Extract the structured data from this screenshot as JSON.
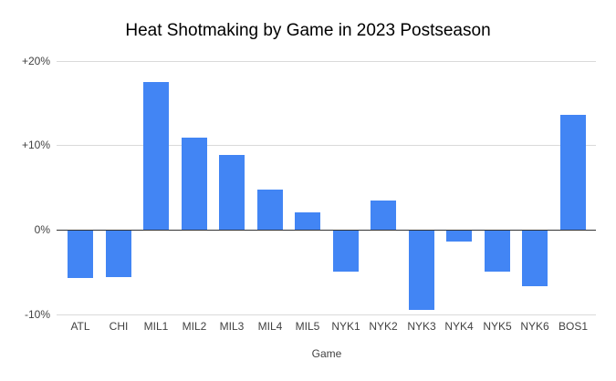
{
  "chart_data": {
    "type": "bar",
    "title": "Heat Shotmaking by Game in 2023 Postseason",
    "xlabel": "Game",
    "ylabel": "",
    "categories": [
      "ATL",
      "CHI",
      "MIL1",
      "MIL2",
      "MIL3",
      "MIL4",
      "MIL5",
      "NYK1",
      "NYK2",
      "NYK3",
      "NYK4",
      "NYK5",
      "NYK6",
      "BOS1"
    ],
    "values": [
      -5.7,
      -5.6,
      17.5,
      10.9,
      8.8,
      4.8,
      2.0,
      -5.0,
      3.5,
      -9.5,
      -1.4,
      -5.0,
      -6.7,
      13.6
    ],
    "ylim": [
      -10,
      20
    ],
    "yticks": [
      {
        "value": 20,
        "label": "+20%"
      },
      {
        "value": 10,
        "label": "+10%"
      },
      {
        "value": 0,
        "label": "0%"
      },
      {
        "value": -10,
        "label": "-10%"
      }
    ],
    "grid": true,
    "legend": "none",
    "bar_color": "#4285f4",
    "gridline_color": "#dadada",
    "baseline_color": "#333333",
    "background": "#ffffff"
  }
}
